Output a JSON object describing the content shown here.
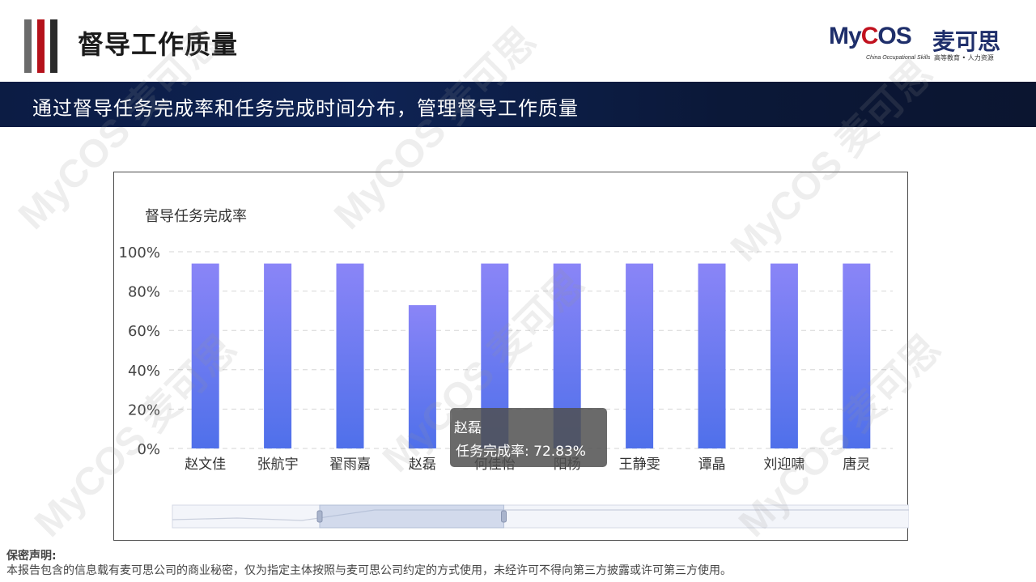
{
  "header": {
    "title": "督导工作质量",
    "brand_word_prefix": "My",
    "brand_word_c": "C",
    "brand_word_suffix": "OS",
    "brand_cn": "麦可思",
    "brand_en": "China Occupational Skills",
    "brand_cn_tagline": "高等教育 • 人力资源",
    "colors": {
      "bar_grey": "#6b6b6b",
      "bar_red": "#b5121b",
      "bar_dark": "#2a2a2a",
      "brand_blue": "#1f2f6b",
      "brand_red": "#c1121f"
    }
  },
  "banner": {
    "text": "通过督导任务完成率和任务完成时间分布，管理督导工作质量",
    "color": "#0e2354"
  },
  "chart_data": {
    "type": "bar",
    "title": "督导任务完成率",
    "xlabel": "",
    "ylabel": "",
    "ylim": [
      0,
      100
    ],
    "y_tick_labels": [
      "0%",
      "20%",
      "40%",
      "60%",
      "80%",
      "100%"
    ],
    "categories": [
      "赵文佳",
      "张航宇",
      "翟雨嘉",
      "赵磊",
      "何佳怡",
      "阳杨",
      "王静雯",
      "谭晶",
      "刘迎啸",
      "唐灵"
    ],
    "values": [
      94,
      94,
      94,
      72.83,
      94,
      94,
      94,
      94,
      94,
      94
    ],
    "grid": true,
    "bar_color_top": "#8a85f7",
    "bar_color_bottom": "#4f70ea",
    "tooltip": {
      "name": "赵磊",
      "label": "任务完成率: 72.83%"
    },
    "data_zoom": {
      "start": 0.2,
      "end": 0.45
    }
  },
  "watermark": {
    "text": "MyCOS 麦可思"
  },
  "footer": {
    "title": "保密声明:",
    "text": "本报告包含的信息载有麦可思公司的商业秘密，仅为指定主体按照与麦可思公司约定的方式使用，未经许可不得向第三方披露或许可第三方使用。"
  }
}
